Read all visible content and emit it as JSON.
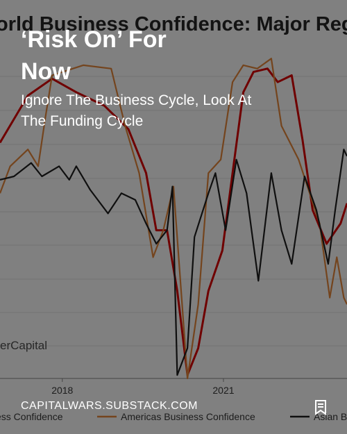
{
  "chart_data": {
    "type": "line",
    "title": "orld Business Confidence: Major Regio",
    "watermark": "erCapital",
    "xlim": [
      2016.84,
      2023.3
    ],
    "ylim": [
      0,
      100
    ],
    "xticks": [
      2018,
      2021
    ],
    "grid": true,
    "series": [
      {
        "name": "ess Confidence",
        "color": "#c00000",
        "x": [
          2016.84,
          2017.36,
          2017.81,
          2018.26,
          2018.78,
          2019.23,
          2019.56,
          2019.75,
          2019.95,
          2020.14,
          2020.33,
          2020.53,
          2020.72,
          2020.98,
          2021.17,
          2021.37,
          2021.56,
          2021.82,
          2022.01,
          2022.27,
          2022.47,
          2022.66,
          2022.92,
          2023.18,
          2023.3
        ],
        "values": [
          70,
          84,
          89,
          85,
          81,
          74,
          61,
          44,
          44,
          26,
          1,
          9,
          26,
          38,
          61,
          85,
          91,
          92,
          88,
          90,
          71,
          50,
          40,
          46,
          52
        ]
      },
      {
        "name": "Americas Business Confidence",
        "color": "#c87533",
        "x": [
          2016.84,
          2017.03,
          2017.36,
          2017.55,
          2017.68,
          2017.81,
          2018.39,
          2018.91,
          2019.17,
          2019.43,
          2019.69,
          2019.88,
          2020.07,
          2020.23,
          2020.33,
          2020.53,
          2020.72,
          2020.95,
          2021.17,
          2021.37,
          2021.63,
          2021.89,
          2022.08,
          2022.4,
          2022.79,
          2022.98,
          2023.11,
          2023.24,
          2023.3
        ],
        "values": [
          55,
          63,
          68,
          63,
          77,
          90,
          93,
          92,
          75,
          61,
          36,
          44,
          57,
          22,
          0,
          22,
          61,
          65,
          88,
          93,
          92,
          95,
          75,
          65,
          46,
          24,
          36,
          24,
          22
        ]
      },
      {
        "name": "Asian B",
        "color": "#1a1a1a",
        "x": [
          2016.84,
          2017.1,
          2017.42,
          2017.62,
          2017.94,
          2018.13,
          2018.26,
          2018.52,
          2018.85,
          2019.1,
          2019.36,
          2019.56,
          2019.75,
          2019.95,
          2020.05,
          2020.14,
          2020.33,
          2020.46,
          2020.72,
          2020.85,
          2021.04,
          2021.24,
          2021.43,
          2021.65,
          2021.89,
          2022.08,
          2022.27,
          2022.51,
          2022.73,
          2022.95,
          2023.08,
          2023.24,
          2023.3
        ],
        "values": [
          59,
          60,
          64,
          60,
          63,
          59,
          63,
          56,
          49,
          55,
          53,
          46,
          40,
          44,
          57,
          1,
          9,
          42,
          55,
          61,
          44,
          65,
          55,
          29,
          61,
          44,
          34,
          60,
          50,
          34,
          50,
          68,
          66
        ]
      }
    ]
  },
  "card": {
    "title": "‘Risk On’ For Now",
    "subtitle": "Ignore The Business Cycle, Look At The Funding Cycle",
    "site": "CAPITALWARS.SUBSTACK.COM"
  }
}
